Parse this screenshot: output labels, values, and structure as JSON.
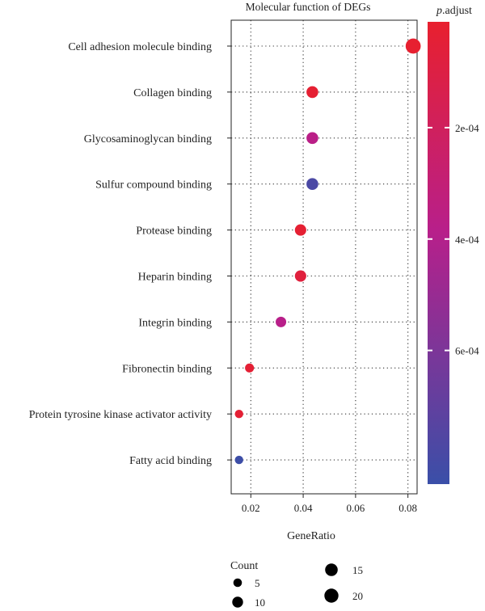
{
  "chart_data": {
    "type": "scatter",
    "title": "Molecular function of DEGs",
    "xlabel": "GeneRatio",
    "ylabel": "",
    "xlim": [
      0.0125,
      0.0835
    ],
    "xticks": [
      "0.02",
      "0.04",
      "0.06",
      "0.08"
    ],
    "xtick_values": [
      0.02,
      0.04,
      0.06,
      0.08
    ],
    "grid": true,
    "categories": [
      "Cell adhesion molecule binding",
      "Collagen binding",
      "Glycosaminoglycan binding",
      "Sulfur compound binding",
      "Protease binding",
      "Heparin binding",
      "Integrin binding",
      "Fibronectin binding",
      "Protein tyrosine kinase activator activity",
      "Fatty acid binding"
    ],
    "points": [
      {
        "term": "Cell adhesion molecule binding",
        "gene_ratio": 0.082,
        "count": 21,
        "p_adjust": 2e-05
      },
      {
        "term": "Collagen binding",
        "gene_ratio": 0.0435,
        "count": 11,
        "p_adjust": 3e-05
      },
      {
        "term": "Glycosaminoglycan binding",
        "gene_ratio": 0.0435,
        "count": 11,
        "p_adjust": 0.00037
      },
      {
        "term": "Sulfur compound binding",
        "gene_ratio": 0.0435,
        "count": 11,
        "p_adjust": 0.00078
      },
      {
        "term": "Protease binding",
        "gene_ratio": 0.039,
        "count": 10,
        "p_adjust": 3e-05
      },
      {
        "term": "Heparin binding",
        "gene_ratio": 0.039,
        "count": 10,
        "p_adjust": 7e-05
      },
      {
        "term": "Integrin binding",
        "gene_ratio": 0.0315,
        "count": 8,
        "p_adjust": 0.00038
      },
      {
        "term": "Fibronectin binding",
        "gene_ratio": 0.0195,
        "count": 5,
        "p_adjust": 4e-05
      },
      {
        "term": "Protein tyrosine kinase activator activity",
        "gene_ratio": 0.0155,
        "count": 4,
        "p_adjust": 4e-05
      },
      {
        "term": "Fatty acid binding",
        "gene_ratio": 0.0155,
        "count": 4,
        "p_adjust": 0.00083
      }
    ],
    "color_legend": {
      "title_italic": "p",
      "title_rest": ".adjust",
      "range": [
        1e-05,
        0.00084
      ],
      "ticks": [
        "2e-04",
        "4e-04",
        "6e-04"
      ],
      "tick_values": [
        0.0002,
        0.0004,
        0.0006
      ],
      "colors": [
        "#e8202e",
        "#b81f8a",
        "#3a4fa8"
      ]
    },
    "size_legend": {
      "title": "Count",
      "items": [
        5,
        10,
        15,
        20
      ],
      "labels": [
        "5",
        "10",
        "15",
        "20"
      ]
    }
  }
}
